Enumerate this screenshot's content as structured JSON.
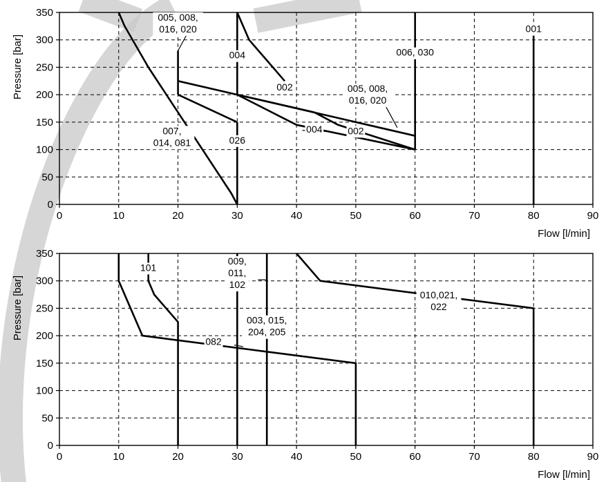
{
  "chart_data": [
    {
      "type": "line",
      "title": "",
      "xlabel": "Flow [l/min]",
      "ylabel": "Pressure [bar]",
      "xlim": [
        0,
        90
      ],
      "ylim": [
        0,
        350
      ],
      "xticks": [
        0,
        10,
        20,
        30,
        40,
        50,
        60,
        70,
        80,
        90
      ],
      "yticks": [
        0,
        50,
        100,
        150,
        200,
        250,
        300,
        350
      ],
      "grid": true,
      "series": [
        {
          "name": "",
          "x": [
            10,
            11,
            15,
            29,
            30
          ],
          "y": [
            350,
            325,
            250,
            20,
            0
          ]
        },
        {
          "name": "",
          "x": [
            20,
            20
          ],
          "y": [
            200,
            280
          ]
        },
        {
          "name": "",
          "x": [
            20,
            30
          ],
          "y": [
            200,
            150
          ]
        },
        {
          "name": "",
          "x": [
            30,
            30
          ],
          "y": [
            0,
            150
          ]
        },
        {
          "name": "",
          "x": [
            30,
            30
          ],
          "y": [
            200,
            350
          ]
        },
        {
          "name": "",
          "x": [
            30,
            32,
            38
          ],
          "y": [
            350,
            300,
            225
          ]
        },
        {
          "name": "",
          "x": [
            20,
            30,
            60
          ],
          "y": [
            225,
            200,
            125
          ]
        },
        {
          "name": "",
          "x": [
            30,
            40,
            60
          ],
          "y": [
            200,
            145,
            100
          ]
        },
        {
          "name": "",
          "x": [
            30,
            43,
            47,
            60
          ],
          "y": [
            200,
            168,
            145,
            100
          ]
        },
        {
          "name": "",
          "x": [
            60,
            60
          ],
          "y": [
            100,
            350
          ]
        },
        {
          "name": "",
          "x": [
            80,
            80
          ],
          "y": [
            0,
            308
          ]
        }
      ],
      "annotations": [
        {
          "lines": [
            "005, 008,",
            "016, 020"
          ],
          "x": 20,
          "y": 335
        },
        {
          "lines": [
            "004"
          ],
          "x": 30,
          "y": 266
        },
        {
          "lines": [
            "002"
          ],
          "x": 38,
          "y": 208
        },
        {
          "lines": [
            "005, 008,",
            "016, 020"
          ],
          "x": 52,
          "y": 205
        },
        {
          "lines": [
            "006, 030"
          ],
          "x": 60,
          "y": 271
        },
        {
          "lines": [
            "001"
          ],
          "x": 80,
          "y": 314
        },
        {
          "lines": [
            "007,",
            "014, 081"
          ],
          "x": 19,
          "y": 128
        },
        {
          "lines": [
            "026"
          ],
          "x": 30,
          "y": 111
        },
        {
          "lines": [
            "004"
          ],
          "x": 43,
          "y": 131
        },
        {
          "lines": [
            "002"
          ],
          "x": 50,
          "y": 128
        }
      ]
    },
    {
      "type": "line",
      "title": "",
      "xlabel": "Flow [l/min]",
      "ylabel": "Pressure [bar]",
      "xlim": [
        0,
        90
      ],
      "ylim": [
        0,
        350
      ],
      "xticks": [
        0,
        10,
        20,
        30,
        40,
        50,
        60,
        70,
        80,
        90
      ],
      "yticks": [
        0,
        50,
        100,
        150,
        200,
        250,
        300,
        350
      ],
      "grid": true,
      "series": [
        {
          "name": "",
          "x": [
            10,
            10,
            14,
            50,
            50
          ],
          "y": [
            350,
            300,
            200,
            150,
            0
          ]
        },
        {
          "name": "",
          "x": [
            15,
            15,
            16,
            20,
            20
          ],
          "y": [
            350,
            300,
            275,
            225,
            0
          ]
        },
        {
          "name": "",
          "x": [
            30,
            30
          ],
          "y": [
            0,
            350
          ]
        },
        {
          "name": "",
          "x": [
            35,
            35
          ],
          "y": [
            0,
            350
          ]
        },
        {
          "name": "",
          "x": [
            40,
            44,
            80,
            80
          ],
          "y": [
            350,
            300,
            250,
            0
          ]
        }
      ],
      "annotations": [
        {
          "lines": [
            "101"
          ],
          "x": 15,
          "y": 318
        },
        {
          "lines": [
            "009,",
            "011,",
            "102"
          ],
          "x": 30,
          "y": 330
        },
        {
          "lines": [
            "003, 015,",
            "204, 205"
          ],
          "x": 35,
          "y": 222
        },
        {
          "lines": [
            "082"
          ],
          "x": 26,
          "y": 183
        },
        {
          "lines": [
            "010,021,",
            "022"
          ],
          "x": 64,
          "y": 268
        }
      ]
    }
  ]
}
